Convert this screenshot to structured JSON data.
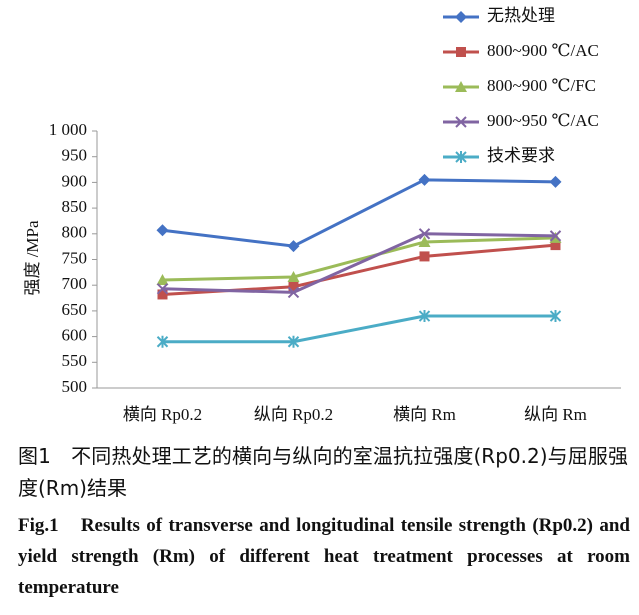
{
  "chart_data": {
    "type": "line",
    "y_label": "强度 /MPa",
    "categories": [
      "横向 Rp0.2",
      "纵向 Rp0.2",
      "横向 Rm",
      "纵向 Rm"
    ],
    "series": [
      {
        "name": "无热处理",
        "color": "#4472c4",
        "marker": "diamond",
        "values": [
          807,
          776,
          905,
          901
        ]
      },
      {
        "name": "800~900 ℃/AC",
        "color": "#c0504d",
        "marker": "square",
        "values": [
          682,
          697,
          756,
          778
        ]
      },
      {
        "name": "800~900 ℃/FC",
        "color": "#9bbb59",
        "marker": "triangle",
        "values": [
          710,
          716,
          784,
          792
        ]
      },
      {
        "name": "900~950 ℃/AC",
        "color": "#8064a2",
        "marker": "x",
        "values": [
          693,
          686,
          800,
          796
        ]
      },
      {
        "name": "技术要求",
        "color": "#4bacc6",
        "marker": "star",
        "values": [
          590,
          590,
          640,
          640
        ]
      }
    ],
    "ylim": [
      500,
      1000
    ],
    "yticks": [
      500,
      550,
      600,
      650,
      700,
      750,
      800,
      850,
      900,
      950,
      {
        "value": 1000,
        "label": "1 000"
      }
    ],
    "grid": false,
    "legend": "top-right"
  },
  "caption_cn": "图1　不同热处理工艺的横向与纵向的室温抗拉强度(Rp0.2)与屈服强度(Rm)结果",
  "caption_en": "Fig.1　Results of transverse and longitudinal tensile strength (Rp0.2) and yield strength (Rm) of different heat treatment processes at room temperature"
}
